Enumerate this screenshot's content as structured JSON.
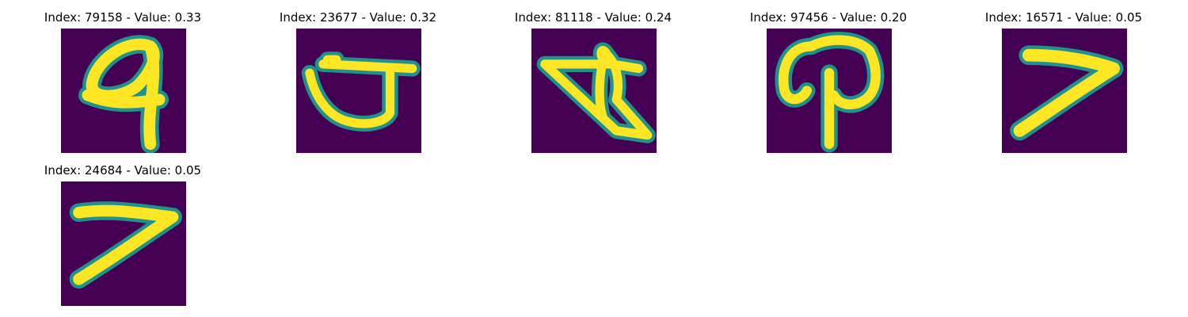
{
  "figure": {
    "panels": [
      {
        "title": "Index: 79158 - Value: 0.33",
        "index": 79158,
        "value": 0.33,
        "glyph": "digit-4-loop-icon"
      },
      {
        "title": "Index: 23677 - Value: 0.32",
        "index": 23677,
        "value": 0.32,
        "glyph": "cup-shape-icon"
      },
      {
        "title": "Index: 81118 - Value: 0.24",
        "index": 81118,
        "value": 0.24,
        "glyph": "triangle-scribble-icon"
      },
      {
        "title": "Index: 97456 - Value: 0.20",
        "index": 97456,
        "value": 0.2,
        "glyph": "digit-9-loop-icon"
      },
      {
        "title": "Index: 16571 - Value: 0.05",
        "index": 16571,
        "value": 0.05,
        "glyph": "digit-7-icon"
      },
      {
        "title": "Index: 24684 - Value: 0.05",
        "index": 24684,
        "value": 0.05,
        "glyph": "digit-7-icon"
      }
    ],
    "colors": {
      "background": "#440154",
      "stroke_core": "#fde725",
      "stroke_edge": "#21918c"
    }
  }
}
